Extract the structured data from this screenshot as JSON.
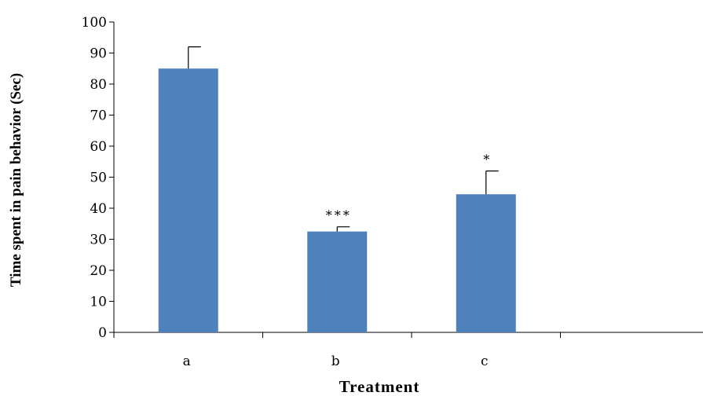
{
  "chart_data": {
    "type": "bar",
    "title": "",
    "xlabel": "Treatment",
    "ylabel": "Time spent in pain behavior (Sec)",
    "categories": [
      "a",
      "b",
      "c"
    ],
    "values": [
      85,
      32.5,
      44.5
    ],
    "error_plus": [
      7,
      1.5,
      7.5
    ],
    "significance": [
      "",
      "***",
      "*"
    ],
    "ylim": [
      0,
      100
    ],
    "yticks": [
      0,
      10,
      20,
      30,
      40,
      50,
      60,
      70,
      80,
      90,
      100
    ],
    "x_slots": 4,
    "grid": false,
    "legend": "none",
    "bar_color": "#4F81BD"
  }
}
